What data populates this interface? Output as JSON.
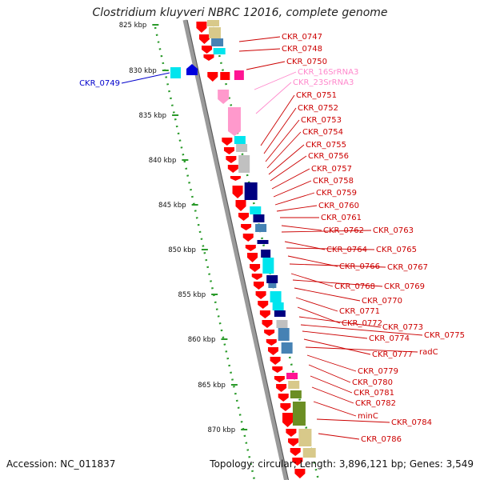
{
  "title": "Clostridium kluyveri NBRC 12016, complete genome",
  "footer": {
    "accession_label": "Accession:",
    "accession": "NC_011837",
    "topology_label": "Topology:",
    "topology": "circular",
    "length_label": "Length:",
    "length": "3,896,121 bp",
    "genes_label": "Genes:",
    "genes": "3,549"
  },
  "ticks": [
    "825 kbp",
    "830 kbp",
    "835 kbp",
    "840 kbp",
    "845 kbp",
    "850 kbp",
    "855 kbp",
    "860 kbp",
    "865 kbp",
    "870 kbp"
  ],
  "colors": {
    "cds_red": "#ff0000",
    "rrna_pink": "#ff99cc",
    "magenta": "#ff1493",
    "cyan": "#00e5ee",
    "navy": "#000080",
    "steel": "#4682b4",
    "khaki": "#d8c98a",
    "olive": "#6b8e23",
    "gray": "#c0c0c0",
    "blue_label": "#0000cc",
    "pink_label": "#ff88cc",
    "red_label": "#cc0000"
  },
  "labels": [
    {
      "text": "CKR_0747",
      "color": "red"
    },
    {
      "text": "CKR_0748",
      "color": "red"
    },
    {
      "text": "CKR_0750",
      "color": "red"
    },
    {
      "text": "CKR_0749",
      "color": "blue"
    },
    {
      "text": "CKR_16SrRNA3",
      "color": "pink"
    },
    {
      "text": "CKR_23SrRNA3",
      "color": "pink"
    },
    {
      "text": "CKR_0751",
      "color": "red"
    },
    {
      "text": "CKR_0752",
      "color": "red"
    },
    {
      "text": "CKR_0753",
      "color": "red"
    },
    {
      "text": "CKR_0754",
      "color": "red"
    },
    {
      "text": "CKR_0755",
      "color": "red"
    },
    {
      "text": "CKR_0756",
      "color": "red"
    },
    {
      "text": "CKR_0757",
      "color": "red"
    },
    {
      "text": "CKR_0758",
      "color": "red"
    },
    {
      "text": "CKR_0759",
      "color": "red"
    },
    {
      "text": "CKR_0760",
      "color": "red"
    },
    {
      "text": "CKR_0761",
      "color": "red"
    },
    {
      "text": "CKR_0762",
      "color": "red"
    },
    {
      "text": "CKR_0763",
      "color": "red"
    },
    {
      "text": "CKR_0764",
      "color": "red"
    },
    {
      "text": "CKR_0765",
      "color": "red"
    },
    {
      "text": "CKR_0766",
      "color": "red"
    },
    {
      "text": "CKR_0767",
      "color": "red"
    },
    {
      "text": "CKR_0768",
      "color": "red"
    },
    {
      "text": "CKR_0769",
      "color": "red"
    },
    {
      "text": "CKR_0770",
      "color": "red"
    },
    {
      "text": "CKR_0771",
      "color": "red"
    },
    {
      "text": "CKR_0772",
      "color": "red"
    },
    {
      "text": "CKR_0773",
      "color": "red"
    },
    {
      "text": "CKR_0775",
      "color": "red"
    },
    {
      "text": "CKR_0774",
      "color": "red"
    },
    {
      "text": "CKR_0777",
      "color": "red"
    },
    {
      "text": "radC",
      "color": "red"
    },
    {
      "text": "CKR_0779",
      "color": "red"
    },
    {
      "text": "CKR_0780",
      "color": "red"
    },
    {
      "text": "CKR_0781",
      "color": "red"
    },
    {
      "text": "CKR_0782",
      "color": "red"
    },
    {
      "text": "minC",
      "color": "red"
    },
    {
      "text": "CKR_0784",
      "color": "red"
    },
    {
      "text": "CKR_0786",
      "color": "red"
    }
  ]
}
